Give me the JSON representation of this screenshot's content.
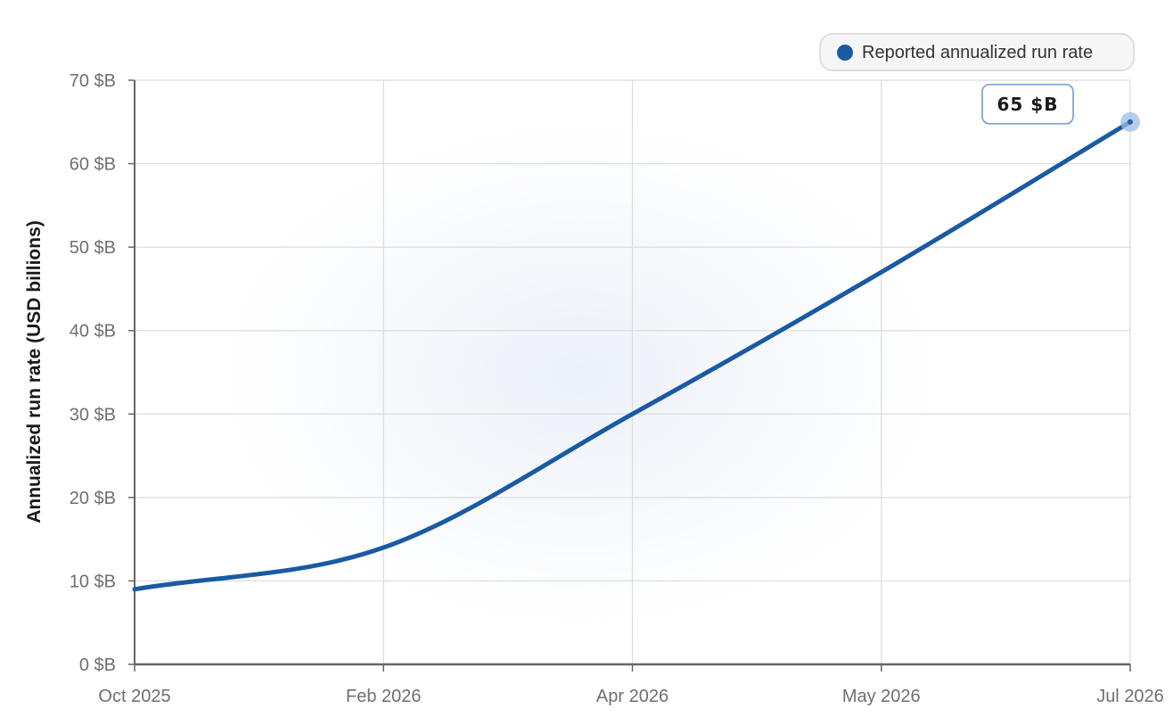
{
  "chart_data": {
    "type": "line",
    "title": "",
    "xlabel": "",
    "ylabel": "Annualized run rate (USD billions)",
    "x_ticks": [
      "Oct 2025",
      "Feb 2026",
      "Apr 2026",
      "May 2026",
      "Jul 2026"
    ],
    "y_ticks": [
      "0 $B",
      "10 $B",
      "20 $B",
      "30 $B",
      "40 $B",
      "50 $B",
      "60 $B",
      "70 $B"
    ],
    "ylim": [
      0,
      70
    ],
    "grid": true,
    "legend_position": "top-right",
    "series": [
      {
        "name": "Reported annualized run rate",
        "color": "#1a5aa3",
        "points": [
          {
            "x": "Oct 2025",
            "y": 9
          },
          {
            "x": "Feb 2026",
            "y": 14
          },
          {
            "x": "Apr 2026",
            "y": 30
          },
          {
            "x": "May 2026",
            "y": 47
          },
          {
            "x": "Jul 2026",
            "y": 65
          }
        ]
      }
    ],
    "annotations": [
      {
        "x": "Jul 2026",
        "y": 65,
        "label": "65 $B"
      }
    ]
  },
  "colors": {
    "line": "#1a5aa3",
    "marker_halo": "#9dbde3",
    "grid": "#dcdcdc",
    "axis": "#666666",
    "callout_border": "#7fa6d6"
  }
}
